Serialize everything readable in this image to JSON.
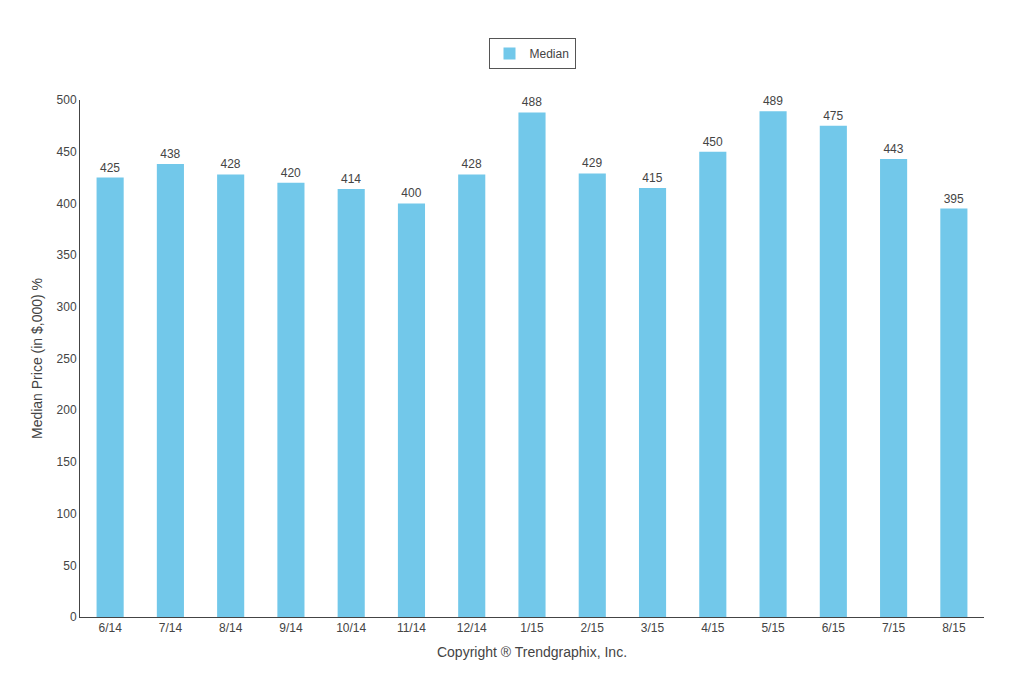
{
  "chart_data": {
    "type": "bar",
    "xlabel": "Copyright ® Trendgraphix, Inc.",
    "ylabel": "Median Price (in $,000) %",
    "categories": [
      "6/14",
      "7/14",
      "8/14",
      "9/14",
      "10/14",
      "11/14",
      "12/14",
      "1/15",
      "2/15",
      "3/15",
      "4/15",
      "5/15",
      "6/15",
      "7/15",
      "8/15"
    ],
    "series": [
      {
        "name": "Median",
        "color": "#72C8EA",
        "values": [
          425,
          438,
          428,
          420,
          414,
          400,
          428,
          488,
          429,
          415,
          450,
          489,
          475,
          443,
          395
        ]
      }
    ],
    "ylim": [
      0,
      500
    ],
    "yticks": [
      0,
      50,
      100,
      150,
      200,
      250,
      300,
      350,
      400,
      450,
      500
    ],
    "grid": false,
    "legend": "top",
    "data_labels": true
  }
}
